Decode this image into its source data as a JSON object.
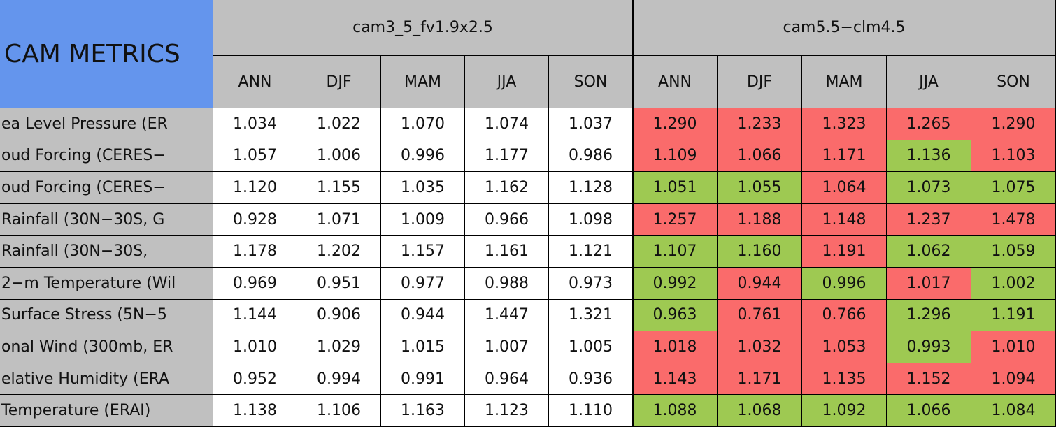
{
  "table": {
    "title": "CAM METRICS",
    "groups": [
      "cam3_5_fv1.9x2.5",
      "cam5.5−clm4.5"
    ],
    "seasons": [
      "ANN",
      "DJF",
      "MAM",
      "JJA",
      "SON",
      "ANN",
      "DJF",
      "MAM",
      "JJA",
      "SON"
    ],
    "row_labels": [
      "ea Level Pressure (ER",
      "oud Forcing (CERES−",
      "oud Forcing (CERES−",
      " Rainfall (30N−30S, G",
      " Rainfall (30N−30S, ",
      "2−m Temperature (Wil",
      " Surface Stress (5N−5",
      "onal Wind (300mb, ER",
      "elative Humidity (ERA",
      " Temperature (ERAI)"
    ],
    "rows": [
      [
        "1.034",
        "1.022",
        "1.070",
        "1.074",
        "1.037",
        "1.290",
        "1.233",
        "1.323",
        "1.265",
        "1.290"
      ],
      [
        "1.057",
        "1.006",
        "0.996",
        "1.177",
        "0.986",
        "1.109",
        "1.066",
        "1.171",
        "1.136",
        "1.103"
      ],
      [
        "1.120",
        "1.155",
        "1.035",
        "1.162",
        "1.128",
        "1.051",
        "1.055",
        "1.064",
        "1.073",
        "1.075"
      ],
      [
        "0.928",
        "1.071",
        "1.009",
        "0.966",
        "1.098",
        "1.257",
        "1.188",
        "1.148",
        "1.237",
        "1.478"
      ],
      [
        "1.178",
        "1.202",
        "1.157",
        "1.161",
        "1.121",
        "1.107",
        "1.160",
        "1.191",
        "1.062",
        "1.059"
      ],
      [
        "0.969",
        "0.951",
        "0.977",
        "0.988",
        "0.973",
        "0.992",
        "0.944",
        "0.996",
        "1.017",
        "1.002"
      ],
      [
        "1.144",
        "0.906",
        "0.944",
        "1.447",
        "1.321",
        "0.963",
        "0.761",
        "0.766",
        "1.296",
        "1.191"
      ],
      [
        "1.010",
        "1.029",
        "1.015",
        "1.007",
        "1.005",
        "1.018",
        "1.032",
        "1.053",
        "0.993",
        "1.010"
      ],
      [
        "0.952",
        "0.994",
        "0.991",
        "0.964",
        "0.936",
        "1.143",
        "1.171",
        "1.135",
        "1.152",
        "1.094"
      ],
      [
        "1.138",
        "1.106",
        "1.163",
        "1.123",
        "1.110",
        "1.088",
        "1.068",
        "1.092",
        "1.066",
        "1.084"
      ]
    ],
    "cell_colors": [
      [
        "#ffffff",
        "#ffffff",
        "#ffffff",
        "#ffffff",
        "#ffffff",
        "#fa6b6b",
        "#fa6b6b",
        "#fa6b6b",
        "#fa6b6b",
        "#fa6b6b"
      ],
      [
        "#ffffff",
        "#ffffff",
        "#ffffff",
        "#ffffff",
        "#ffffff",
        "#fa6b6b",
        "#fa6b6b",
        "#fa6b6b",
        "#9ec952",
        "#fa6b6b"
      ],
      [
        "#ffffff",
        "#ffffff",
        "#ffffff",
        "#ffffff",
        "#ffffff",
        "#9ec952",
        "#9ec952",
        "#fa6b6b",
        "#9ec952",
        "#9ec952"
      ],
      [
        "#ffffff",
        "#ffffff",
        "#ffffff",
        "#ffffff",
        "#ffffff",
        "#fa6b6b",
        "#fa6b6b",
        "#fa6b6b",
        "#fa6b6b",
        "#fa6b6b"
      ],
      [
        "#ffffff",
        "#ffffff",
        "#ffffff",
        "#ffffff",
        "#ffffff",
        "#9ec952",
        "#9ec952",
        "#fa6b6b",
        "#9ec952",
        "#9ec952"
      ],
      [
        "#ffffff",
        "#ffffff",
        "#ffffff",
        "#ffffff",
        "#ffffff",
        "#9ec952",
        "#fa6b6b",
        "#9ec952",
        "#fa6b6b",
        "#9ec952"
      ],
      [
        "#ffffff",
        "#ffffff",
        "#ffffff",
        "#ffffff",
        "#ffffff",
        "#9ec952",
        "#fa6b6b",
        "#fa6b6b",
        "#9ec952",
        "#9ec952"
      ],
      [
        "#ffffff",
        "#ffffff",
        "#ffffff",
        "#ffffff",
        "#ffffff",
        "#fa6b6b",
        "#fa6b6b",
        "#fa6b6b",
        "#9ec952",
        "#fa6b6b"
      ],
      [
        "#ffffff",
        "#ffffff",
        "#ffffff",
        "#ffffff",
        "#ffffff",
        "#fa6b6b",
        "#fa6b6b",
        "#fa6b6b",
        "#fa6b6b",
        "#fa6b6b"
      ],
      [
        "#ffffff",
        "#ffffff",
        "#ffffff",
        "#ffffff",
        "#ffffff",
        "#9ec952",
        "#9ec952",
        "#9ec952",
        "#9ec952",
        "#9ec952"
      ]
    ]
  }
}
